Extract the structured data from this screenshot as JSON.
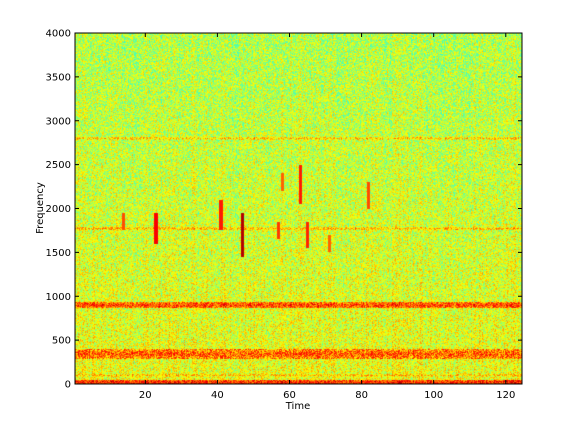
{
  "chart_data": {
    "type": "heatmap",
    "subtype": "spectrogram",
    "title": "",
    "xlabel": "Time",
    "ylabel": "Frequency",
    "xlim": [
      0.5,
      124.5
    ],
    "ylim": [
      0,
      4000
    ],
    "x_ticks": [
      20,
      40,
      60,
      80,
      100,
      120
    ],
    "y_ticks": [
      0,
      500,
      1000,
      1500,
      2000,
      2500,
      3000,
      3500,
      4000
    ],
    "colormap": "jet",
    "grid": false,
    "legend": "none",
    "background_level": 0.55,
    "horizontal_bands": [
      {
        "frequency": 20,
        "width_hz": 60,
        "level": 0.85
      },
      {
        "frequency": 100,
        "width_hz": 30,
        "level": 0.7
      },
      {
        "frequency": 340,
        "width_hz": 120,
        "level": 0.78
      },
      {
        "frequency": 900,
        "width_hz": 70,
        "level": 0.82
      },
      {
        "frequency": 1770,
        "width_hz": 40,
        "level": 0.7
      },
      {
        "frequency": 2800,
        "width_hz": 40,
        "level": 0.68
      }
    ],
    "transients": [
      {
        "time": 14,
        "f_low": 1750,
        "f_high": 1950,
        "level": 0.8
      },
      {
        "time": 23,
        "f_low": 1600,
        "f_high": 1950,
        "level": 0.88
      },
      {
        "time": 41,
        "f_low": 1750,
        "f_high": 2100,
        "level": 0.85
      },
      {
        "time": 47,
        "f_low": 1450,
        "f_high": 1950,
        "level": 0.95
      },
      {
        "time": 57,
        "f_low": 1650,
        "f_high": 1850,
        "level": 0.82
      },
      {
        "time": 58,
        "f_low": 2200,
        "f_high": 2400,
        "level": 0.78
      },
      {
        "time": 63,
        "f_low": 2050,
        "f_high": 2500,
        "level": 0.85
      },
      {
        "time": 65,
        "f_low": 1550,
        "f_high": 1850,
        "level": 0.84
      },
      {
        "time": 71,
        "f_low": 1500,
        "f_high": 1700,
        "level": 0.78
      },
      {
        "time": 82,
        "f_low": 2000,
        "f_high": 2300,
        "level": 0.8
      }
    ]
  }
}
